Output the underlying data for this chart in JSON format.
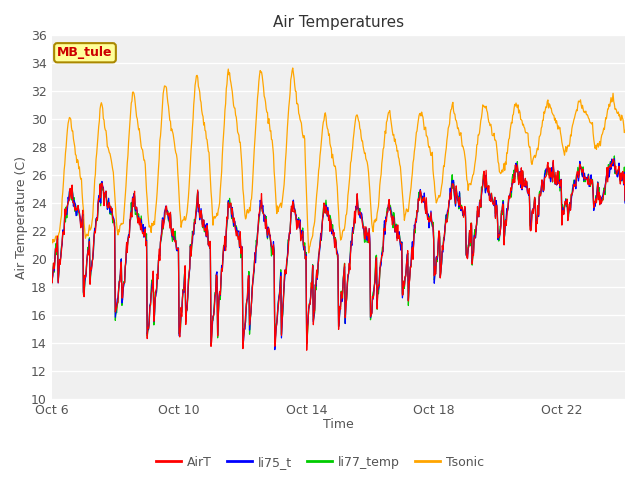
{
  "title": "Air Temperatures",
  "xlabel": "Time",
  "ylabel": "Air Temperature (C)",
  "ylim": [
    10,
    36
  ],
  "yticks": [
    10,
    12,
    14,
    16,
    18,
    20,
    22,
    24,
    26,
    28,
    30,
    32,
    34,
    36
  ],
  "bg_color": "#f0f0f0",
  "series": [
    "AirT",
    "li75_t",
    "li77_temp",
    "Tsonic"
  ],
  "colors": [
    "#ff0000",
    "#0000ff",
    "#00cc00",
    "#ffa500"
  ],
  "annotation_text": "MB_tule",
  "annotation_color": "#cc0000",
  "annotation_bg": "#ffff99",
  "annotation_border": "#aa8800",
  "start_day": 6,
  "end_day": 24,
  "x_tick_days": [
    6,
    10,
    14,
    18,
    22
  ],
  "x_tick_labels": [
    "Oct 6",
    "Oct 10",
    "Oct 14",
    "Oct 18",
    "Oct 22"
  ]
}
